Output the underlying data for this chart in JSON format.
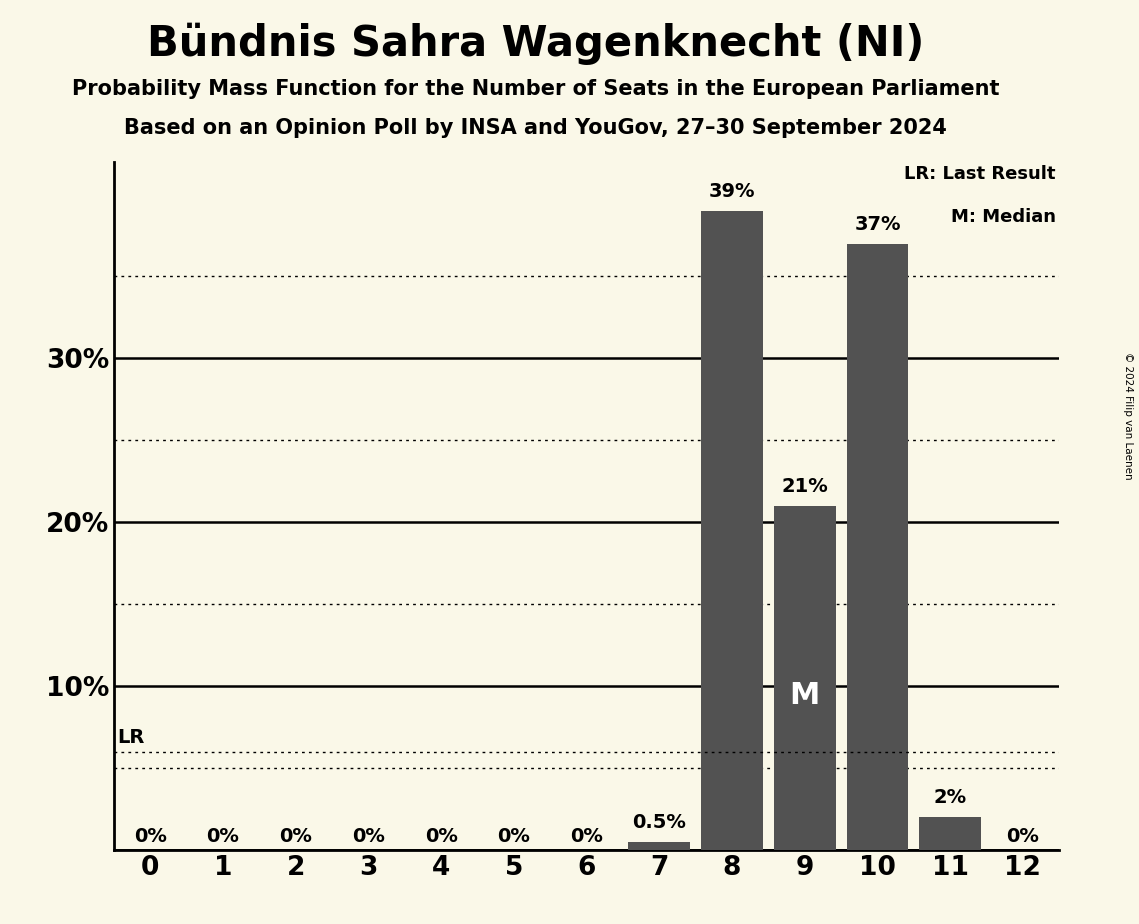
{
  "title": "Bündnis Sahra Wagenknecht (NI)",
  "subtitle1": "Probability Mass Function for the Number of Seats in the European Parliament",
  "subtitle2": "Based on an Opinion Poll by INSA and YouGov, 27–30 September 2024",
  "copyright": "© 2024 Filip van Laenen",
  "categories": [
    0,
    1,
    2,
    3,
    4,
    5,
    6,
    7,
    8,
    9,
    10,
    11,
    12
  ],
  "values": [
    0.0,
    0.0,
    0.0,
    0.0,
    0.0,
    0.0,
    0.0,
    0.5,
    39.0,
    21.0,
    37.0,
    2.0,
    0.0
  ],
  "bar_color": "#525252",
  "background_color": "#faf8e8",
  "bar_labels": [
    "0%",
    "0%",
    "0%",
    "0%",
    "0%",
    "0%",
    "0%",
    "0.5%",
    "39%",
    "21%",
    "37%",
    "2%",
    "0%"
  ],
  "ylim": [
    0,
    42
  ],
  "xlim": [
    -0.5,
    12.5
  ],
  "lr_y": 6.0,
  "lr_label": "LR",
  "median_seat": 9,
  "median_label": "M",
  "legend_lr": "LR: Last Result",
  "legend_m": "M: Median",
  "dotted_levels": [
    5.0,
    15.0,
    25.0,
    35.0
  ],
  "solid_levels": [
    10,
    20,
    30
  ],
  "bar_label_fontsize": 14,
  "tick_fontsize": 19,
  "ytick_labels": [
    "10%",
    "20%",
    "30%"
  ]
}
